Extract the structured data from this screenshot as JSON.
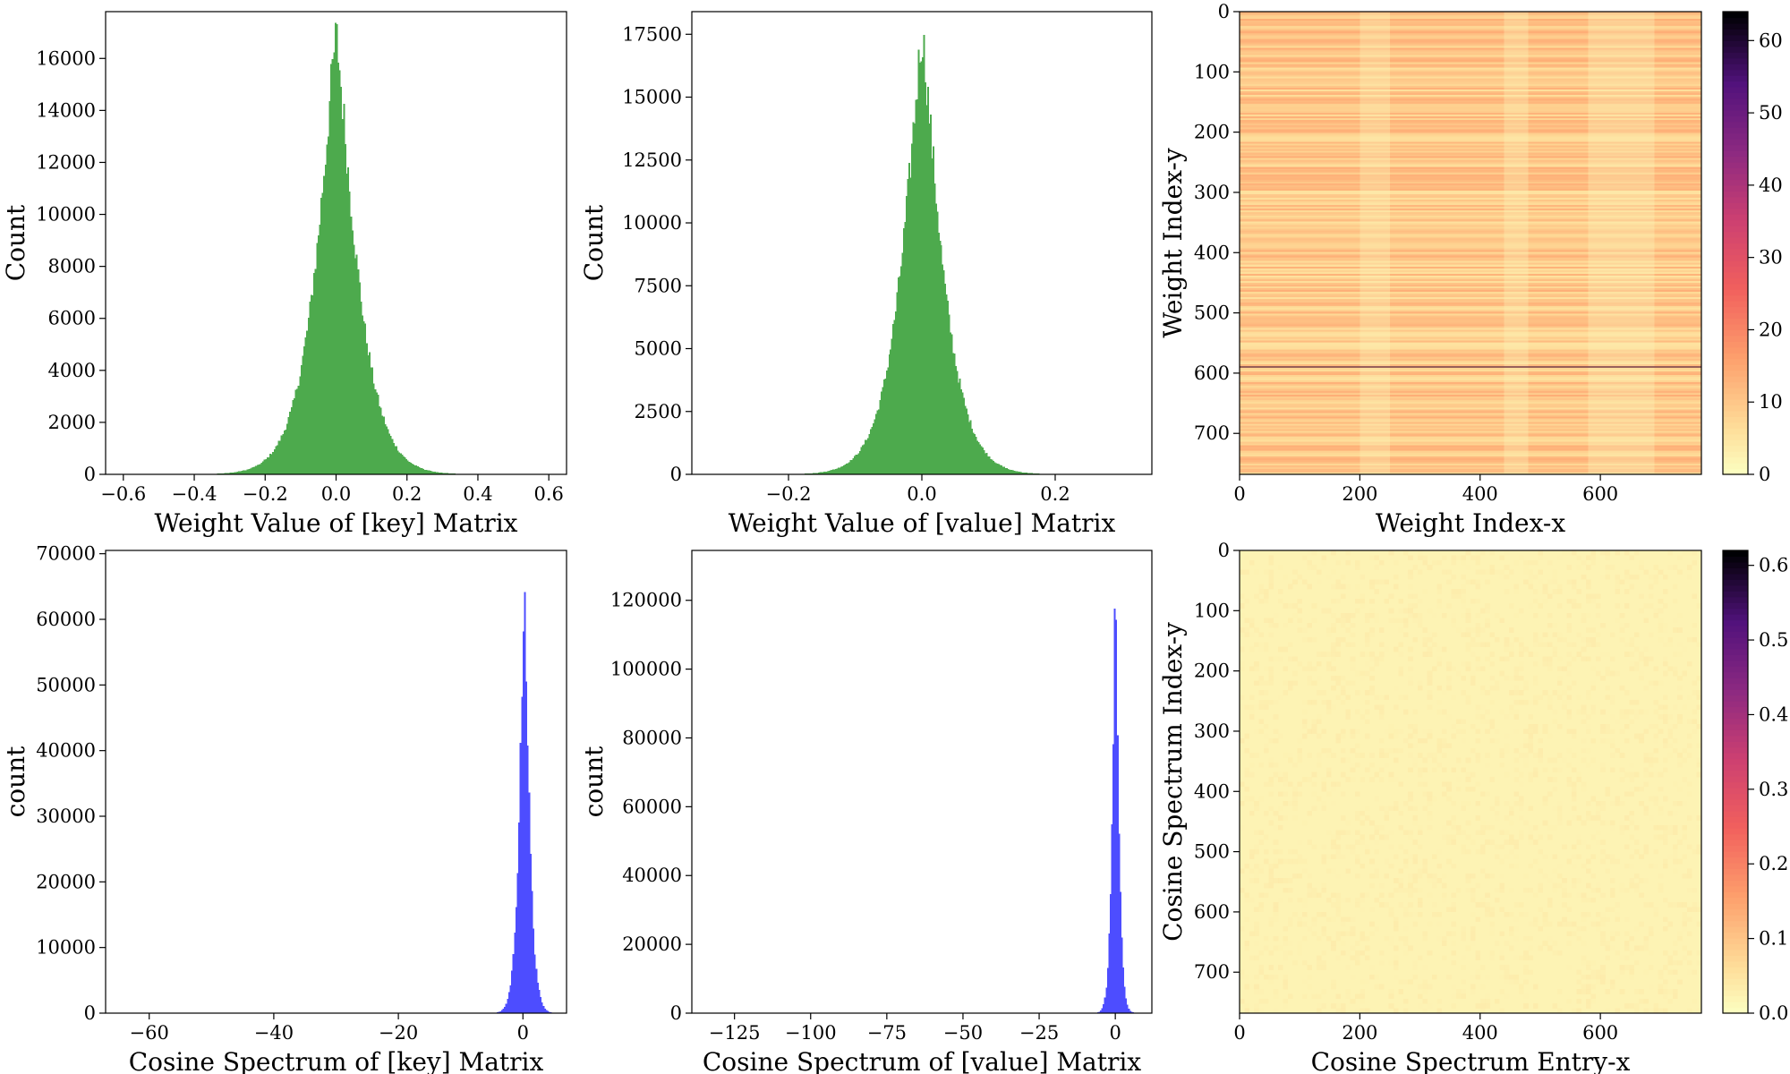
{
  "chart_data": [
    {
      "id": "key-weights",
      "type": "histogram",
      "xlabel": "Weight Value of [key] Matrix",
      "ylabel": "Count",
      "xlim": [
        -0.65,
        0.65
      ],
      "ylim": [
        0,
        17800
      ],
      "xticks": [
        -0.6,
        -0.4,
        -0.2,
        0.0,
        0.2,
        0.4,
        0.6
      ],
      "xtick_labels": [
        "−0.6",
        "−0.4",
        "−0.2",
        "0.0",
        "0.2",
        "0.4",
        "0.6"
      ],
      "yticks": [
        0,
        2000,
        4000,
        6000,
        8000,
        10000,
        12000,
        14000,
        16000
      ],
      "ytick_labels": [
        "0",
        "2000",
        "4000",
        "6000",
        "8000",
        "10000",
        "12000",
        "14000",
        "16000"
      ],
      "color": "#4daa4d",
      "distribution": {
        "kind": "laplace-like",
        "center": 0.0,
        "scale": 0.072,
        "peak": 16900
      },
      "bin_range": [
        -0.6,
        0.6
      ],
      "bins": 300
    },
    {
      "id": "value-weights",
      "type": "histogram",
      "xlabel": "Weight Value of [value] Matrix",
      "ylabel": "Count",
      "xlim": [
        -0.345,
        0.345
      ],
      "ylim": [
        0,
        18400
      ],
      "xticks": [
        -0.2,
        0.0,
        0.2
      ],
      "xtick_labels": [
        "−0.2",
        "0.0",
        "0.2"
      ],
      "yticks": [
        0,
        2500,
        5000,
        7500,
        10000,
        12500,
        15000,
        17500
      ],
      "ytick_labels": [
        "0",
        "2500",
        "5000",
        "7500",
        "10000",
        "12500",
        "15000",
        "17500"
      ],
      "color": "#4daa4d",
      "distribution": {
        "kind": "laplace-like",
        "center": 0.0,
        "scale": 0.038,
        "peak": 17500
      },
      "bin_range": [
        -0.3,
        0.3
      ],
      "bins": 300
    },
    {
      "id": "weight-heatmap",
      "type": "heatmap",
      "xlabel": "Weight Index-x",
      "ylabel": "Weight Index-y",
      "xlim": [
        0,
        768
      ],
      "ylim": [
        0,
        768
      ],
      "xticks": [
        0,
        200,
        400,
        600
      ],
      "yticks": [
        0,
        100,
        200,
        300,
        400,
        500,
        600,
        700
      ],
      "colormap": "magma_r",
      "colorbar": {
        "min": 0,
        "max": 64,
        "ticks": [
          0,
          10,
          20,
          30,
          40,
          50,
          60
        ]
      },
      "typical_value": 8
    },
    {
      "id": "key-cosine",
      "type": "histogram",
      "xlabel": "Cosine Spectrum of [key] Matrix",
      "ylabel": "count",
      "xlim": [
        -67,
        7
      ],
      "ylim": [
        0,
        70500
      ],
      "xticks": [
        -60,
        -40,
        -20,
        0
      ],
      "xtick_labels": [
        "−60",
        "−40",
        "−20",
        "0"
      ],
      "yticks": [
        0,
        10000,
        20000,
        30000,
        40000,
        50000,
        60000,
        70000
      ],
      "ytick_labels": [
        "0",
        "10000",
        "20000",
        "30000",
        "40000",
        "50000",
        "60000",
        "70000"
      ],
      "color": "#4d4dff",
      "distribution": {
        "kind": "laplace-like",
        "center": 0.2,
        "scale": 0.95,
        "peak": 67000
      },
      "bin_range": [
        -64,
        5
      ],
      "bins": 300
    },
    {
      "id": "value-cosine",
      "type": "histogram",
      "xlabel": "Cosine Spectrum of [value] Matrix",
      "ylabel": "count",
      "xlim": [
        -139,
        12
      ],
      "ylim": [
        0,
        134500
      ],
      "xticks": [
        -125,
        -100,
        -75,
        -50,
        -25,
        0
      ],
      "xtick_labels": [
        "−125",
        "−100",
        "−75",
        "−50",
        "−25",
        "0"
      ],
      "yticks": [
        0,
        20000,
        40000,
        60000,
        80000,
        100000,
        120000
      ],
      "ytick_labels": [
        "0",
        "20000",
        "40000",
        "60000",
        "80000",
        "100000",
        "120000"
      ],
      "color": "#4d4dff",
      "distribution": {
        "kind": "laplace-like",
        "center": 0.0,
        "scale": 1.25,
        "peak": 127500
      },
      "bin_range": [
        -132,
        6
      ],
      "bins": 300
    },
    {
      "id": "cosine-heatmap",
      "type": "heatmap",
      "xlabel": "Cosine Spectrum Entry-x",
      "ylabel": "Cosine Spectrum Index-y",
      "xlim": [
        0,
        768
      ],
      "ylim": [
        0,
        768
      ],
      "xticks": [
        0,
        200,
        400,
        600
      ],
      "yticks": [
        0,
        100,
        200,
        300,
        400,
        500,
        600,
        700
      ],
      "colormap": "magma_r",
      "colorbar": {
        "min": 0,
        "max": 0.62,
        "ticks": [
          "0.0",
          "0.1",
          "0.2",
          "0.3",
          "0.4",
          "0.5",
          "0.6"
        ]
      },
      "typical_value": 0.02
    }
  ]
}
